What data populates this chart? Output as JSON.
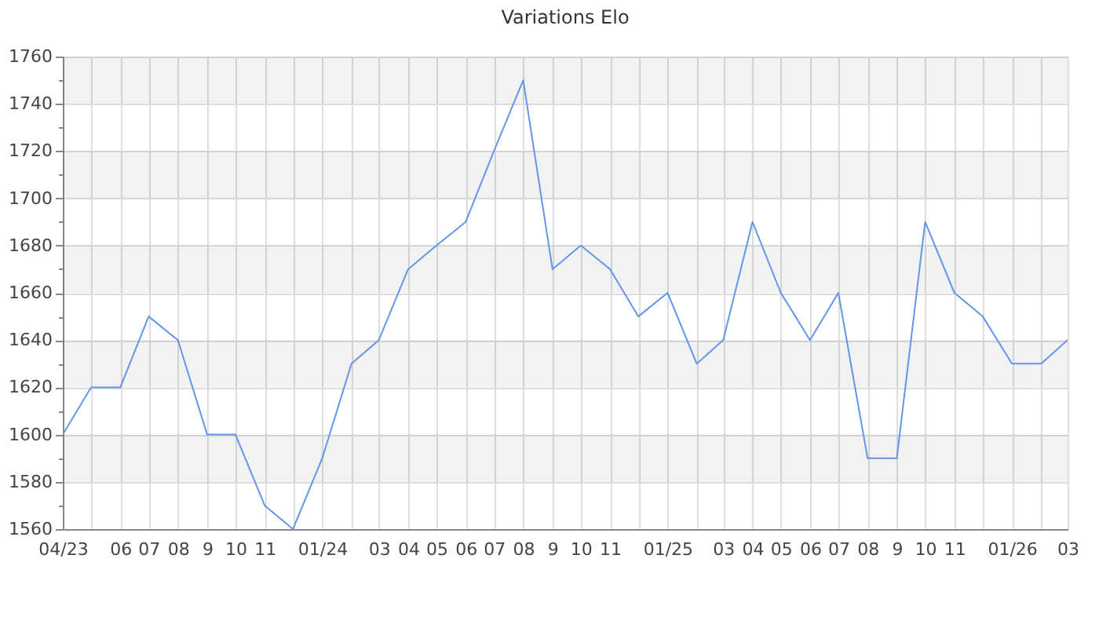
{
  "chart_data": {
    "type": "line",
    "title": "Variations Elo",
    "x": [
      "2023-04",
      "2023-05",
      "2023-06",
      "2023-07",
      "2023-08",
      "2023-09",
      "2023-10",
      "2023-11",
      "2023-12",
      "2024-01",
      "2024-02",
      "2024-03",
      "2024-04",
      "2024-05",
      "2024-06",
      "2024-07",
      "2024-08",
      "2024-09",
      "2024-10",
      "2024-11",
      "2024-12",
      "2025-01",
      "2025-02",
      "2025-03",
      "2025-04",
      "2025-05",
      "2025-06",
      "2025-07",
      "2025-08",
      "2025-09",
      "2025-10",
      "2025-11",
      "2025-12",
      "2026-01",
      "2026-02",
      "2026-03"
    ],
    "values": [
      1600,
      1620,
      1620,
      1650,
      1640,
      1600,
      1600,
      1570,
      1560,
      1590,
      1630,
      1640,
      1670,
      1680,
      1690,
      1720,
      1750,
      1670,
      1680,
      1670,
      1650,
      1660,
      1630,
      1640,
      1690,
      1660,
      1640,
      1660,
      1590,
      1590,
      1690,
      1660,
      1650,
      1630,
      1630,
      1640
    ],
    "color": "#6495ed",
    "line_style": "solid",
    "xlim": [
      "2023-04",
      "2026-03"
    ],
    "ylim": [
      1560,
      1760
    ],
    "xticks": [
      {
        "value": "2023-04",
        "label": "04/23"
      },
      {
        "value": "2023-05",
        "label": null
      },
      {
        "value": "2023-06",
        "label": "06"
      },
      {
        "value": "2023-07",
        "label": "07"
      },
      {
        "value": "2023-08",
        "label": "08"
      },
      {
        "value": "2023-09",
        "label": "9"
      },
      {
        "value": "2023-10",
        "label": "10"
      },
      {
        "value": "2023-11",
        "label": "11"
      },
      {
        "value": "2023-12",
        "label": null
      },
      {
        "value": "2024-01",
        "label": "01/24"
      },
      {
        "value": "2024-02",
        "label": null
      },
      {
        "value": "2024-03",
        "label": "03"
      },
      {
        "value": "2024-04",
        "label": "04"
      },
      {
        "value": "2024-05",
        "label": "05"
      },
      {
        "value": "2024-06",
        "label": "06"
      },
      {
        "value": "2024-07",
        "label": "07"
      },
      {
        "value": "2024-08",
        "label": "08"
      },
      {
        "value": "2024-09",
        "label": "9"
      },
      {
        "value": "2024-10",
        "label": "10"
      },
      {
        "value": "2024-11",
        "label": "11"
      },
      {
        "value": "2024-12",
        "label": null
      },
      {
        "value": "2025-01",
        "label": "01/25"
      },
      {
        "value": "2025-02",
        "label": null
      },
      {
        "value": "2025-03",
        "label": "03"
      },
      {
        "value": "2025-04",
        "label": "04"
      },
      {
        "value": "2025-05",
        "label": "05"
      },
      {
        "value": "2025-06",
        "label": "06"
      },
      {
        "value": "2025-07",
        "label": "07"
      },
      {
        "value": "2025-08",
        "label": "08"
      },
      {
        "value": "2025-09",
        "label": "9"
      },
      {
        "value": "2025-10",
        "label": "10"
      },
      {
        "value": "2025-11",
        "label": "11"
      },
      {
        "value": "2025-12",
        "label": null
      },
      {
        "value": "2026-01",
        "label": "01/26"
      },
      {
        "value": "2026-02",
        "label": null
      },
      {
        "value": "2026-03",
        "label": "03"
      }
    ],
    "yticks": [
      1560,
      {
        "value": 1570,
        "label": null
      },
      1580,
      {
        "value": 1590,
        "label": null
      },
      1600,
      {
        "value": 1610,
        "label": null
      },
      1620,
      {
        "value": 1630,
        "label": null
      },
      1640,
      {
        "value": 1650,
        "label": null
      },
      1660,
      {
        "value": 1670,
        "label": null
      },
      1680,
      {
        "value": 1690,
        "label": null
      },
      1700,
      {
        "value": 1710,
        "label": null
      },
      1720,
      {
        "value": 1730,
        "label": null
      },
      1740,
      {
        "value": 1750,
        "label": null
      },
      1760
    ],
    "bands": [
      {
        "axis": "y",
        "from": 1580,
        "to": 1600,
        "color": "#f2f2f2"
      },
      {
        "axis": "y",
        "from": 1620,
        "to": 1640,
        "color": "#f2f2f2"
      },
      {
        "axis": "y",
        "from": 1660,
        "to": 1680,
        "color": "#f2f2f2"
      },
      {
        "axis": "y",
        "from": 1700,
        "to": 1720,
        "color": "#f2f2f2"
      },
      {
        "axis": "y",
        "from": 1740,
        "to": 1760,
        "color": "#f2f2f2"
      }
    ],
    "grid": true
  }
}
